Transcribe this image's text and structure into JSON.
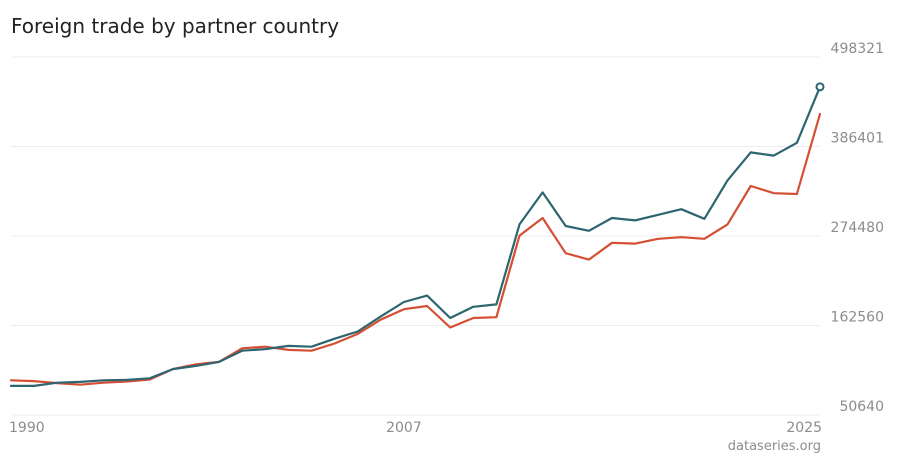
{
  "title": "Foreign trade by partner country",
  "source": "dataseries.org",
  "colors": {
    "series_1": "#2d6570",
    "series_2": "#d44f33",
    "grid": "#ececec",
    "tick_text": "#8c8c8c"
  },
  "chart_data": {
    "type": "line",
    "title": "Foreign trade by partner country",
    "xlabel": "",
    "ylabel": "",
    "grid": true,
    "legend": "none",
    "x": [
      1990,
      1991,
      1992,
      1993,
      1994,
      1995,
      1996,
      1997,
      1998,
      1999,
      2000,
      2001,
      2002,
      2003,
      2004,
      2005,
      2006,
      2007,
      2008,
      2009,
      2010,
      2011,
      2012,
      2013,
      2014,
      2015,
      2016,
      2017,
      2018,
      2019,
      2020,
      2021,
      2022,
      2023,
      2024,
      2025
    ],
    "xlim": [
      1990,
      2025
    ],
    "xticks": [
      "1990",
      "2007",
      "2025"
    ],
    "ylim": [
      50640,
      498321
    ],
    "yticks": [
      "498321",
      "386401",
      "274480",
      "162560",
      "50640"
    ],
    "series": [
      {
        "values": [
          87000,
          87000,
          91000,
          92000,
          94000,
          94500,
          96500,
          108000,
          112000,
          117000,
          131000,
          133000,
          137000,
          136000,
          146000,
          155000,
          174000,
          192000,
          200000,
          172000,
          186000,
          189000,
          289000,
          329000,
          287000,
          281000,
          297000,
          294000,
          301000,
          308000,
          296000,
          344000,
          379000,
          375000,
          391000,
          461000
        ]
      },
      {
        "values": [
          94000,
          93000,
          90500,
          88500,
          91000,
          92500,
          95000,
          108000,
          114000,
          117000,
          134000,
          136000,
          132000,
          131000,
          140000,
          152000,
          170000,
          183000,
          187000,
          160000,
          172000,
          173000,
          275000,
          297000,
          253000,
          245000,
          266000,
          265000,
          271000,
          273000,
          271000,
          289000,
          337000,
          328000,
          327000,
          427000
        ]
      }
    ]
  }
}
